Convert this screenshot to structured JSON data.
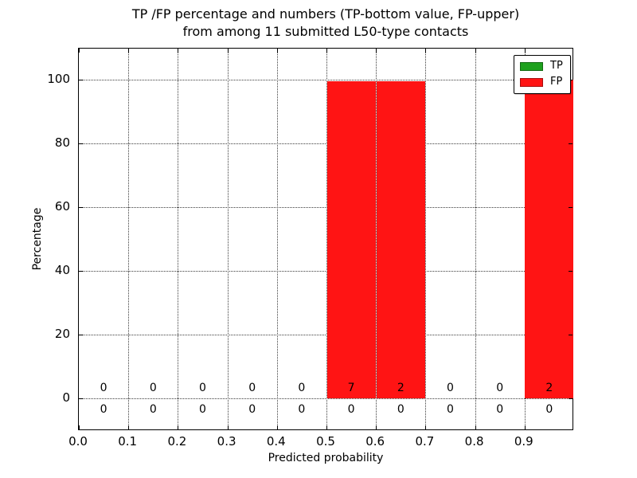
{
  "figure": {
    "title_line1": "TP /FP percentage and numbers (TP-bottom value, FP-upper)",
    "title_line2": "from among 11 submitted L50-type contacts",
    "xlabel": "Predicted probability",
    "ylabel": "Percentage"
  },
  "legend": {
    "entries": [
      {
        "label": "TP",
        "color": "#1ea11e"
      },
      {
        "label": "FP",
        "color": "#ff1414"
      }
    ]
  },
  "chart_data": {
    "type": "bar",
    "stacked": true,
    "title": "TP /FP percentage and numbers (TP-bottom value, FP-upper) from among 11 submitted L50-type contacts",
    "xlabel": "Predicted probability",
    "ylabel": "Percentage",
    "total_contacts": 11,
    "bin_width": 0.1,
    "bin_starts": [
      0.0,
      0.1,
      0.2,
      0.3,
      0.4,
      0.5,
      0.6,
      0.7,
      0.8,
      0.9
    ],
    "xtick_labels": [
      "0.0",
      "0.1",
      "0.2",
      "0.3",
      "0.4",
      "0.5",
      "0.6",
      "0.7",
      "0.8",
      "0.9"
    ],
    "yticks": [
      0,
      20,
      40,
      60,
      80,
      100
    ],
    "xlim": [
      0.0,
      1.0
    ],
    "ylim_display": [
      -10.25,
      109.75
    ],
    "grid": "dotted",
    "legend_position": "upper right",
    "series": [
      {
        "name": "TP",
        "color": "#1ea11e",
        "percent_values": [
          0,
          0,
          0,
          0,
          0,
          0,
          0,
          0,
          0,
          0
        ],
        "counts": [
          0,
          0,
          0,
          0,
          0,
          0,
          0,
          0,
          0,
          0
        ]
      },
      {
        "name": "FP",
        "color": "#ff1414",
        "percent_values": [
          0,
          0,
          0,
          0,
          0,
          99.4,
          99.4,
          0,
          0,
          100
        ],
        "counts": [
          0,
          0,
          0,
          0,
          0,
          7,
          2,
          0,
          0,
          2
        ]
      }
    ],
    "annotations": {
      "fp_count_row": [
        "0",
        "0",
        "0",
        "0",
        "0",
        "7",
        "2",
        "0",
        "0",
        "2"
      ],
      "tp_count_row": [
        "0",
        "0",
        "0",
        "0",
        "0",
        "0",
        "0",
        "0",
        "0",
        "0"
      ]
    }
  }
}
